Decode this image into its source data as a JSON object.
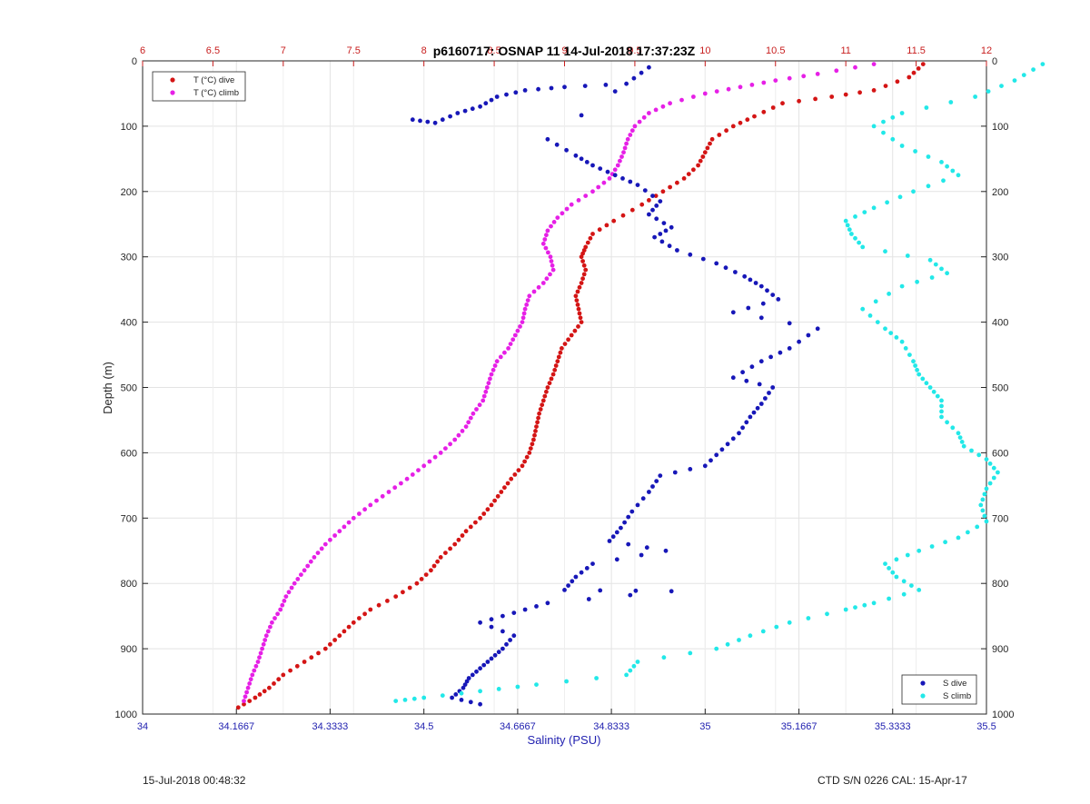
{
  "footer": {
    "left": "15-Jul-2018 00:48:32",
    "right": "CTD S/N 0226  CAL: 15-Apr-17"
  },
  "chart_data": {
    "type": "scatter",
    "title": "p6160717: OSNAP 11  14-Jul-2018 17:37:23Z",
    "ylabel": "Depth (m)",
    "xlabel": "Salinity (PSU)",
    "ylim": [
      0,
      1000
    ],
    "y_reversed": true,
    "y_ticks": [
      "0",
      "100",
      "200",
      "300",
      "400",
      "500",
      "600",
      "700",
      "800",
      "900",
      "1000"
    ],
    "salinity_axis": {
      "range": [
        34,
        35.5
      ],
      "ticks": [
        "34",
        "34.1667",
        "34.3333",
        "34.5",
        "34.6667",
        "34.8333",
        "35",
        "35.1667",
        "35.3333",
        "35.5"
      ],
      "color": "#2121b0"
    },
    "temperature_axis": {
      "range": [
        6,
        12
      ],
      "ticks": [
        "6",
        "6.5",
        "7",
        "7.5",
        "8",
        "8.5",
        "9",
        "9.5",
        "10",
        "10.5",
        "11",
        "11.5",
        "12"
      ],
      "color": "#c81e1e"
    },
    "grid": true,
    "legends": [
      {
        "position": "top-left",
        "entries": [
          "T (°C) dive",
          "T (°C) climb"
        ]
      },
      {
        "position": "bottom-right",
        "entries": [
          "S dive",
          "S climb"
        ]
      }
    ],
    "series": [
      {
        "name": "T (°C) dive",
        "axis": "temperature",
        "color": "#d41515",
        "points": [
          [
            11.55,
            5
          ],
          [
            11.45,
            25
          ],
          [
            11.2,
            45
          ],
          [
            10.9,
            55
          ],
          [
            10.55,
            65
          ],
          [
            10.35,
            85
          ],
          [
            10.2,
            100
          ],
          [
            10.05,
            120
          ],
          [
            10.0,
            140
          ],
          [
            9.95,
            160
          ],
          [
            9.85,
            180
          ],
          [
            9.7,
            200
          ],
          [
            9.55,
            220
          ],
          [
            9.35,
            245
          ],
          [
            9.2,
            265
          ],
          [
            9.15,
            285
          ],
          [
            9.12,
            300
          ],
          [
            9.15,
            320
          ],
          [
            9.12,
            340
          ],
          [
            9.08,
            360
          ],
          [
            9.1,
            380
          ],
          [
            9.12,
            400
          ],
          [
            9.05,
            420
          ],
          [
            8.98,
            440
          ],
          [
            8.95,
            460
          ],
          [
            8.92,
            480
          ],
          [
            8.88,
            500
          ],
          [
            8.85,
            520
          ],
          [
            8.82,
            540
          ],
          [
            8.8,
            560
          ],
          [
            8.78,
            580
          ],
          [
            8.75,
            600
          ],
          [
            8.7,
            620
          ],
          [
            8.62,
            640
          ],
          [
            8.55,
            660
          ],
          [
            8.48,
            680
          ],
          [
            8.4,
            700
          ],
          [
            8.3,
            720
          ],
          [
            8.22,
            740
          ],
          [
            8.12,
            760
          ],
          [
            8.05,
            780
          ],
          [
            7.95,
            800
          ],
          [
            7.8,
            820
          ],
          [
            7.62,
            840
          ],
          [
            7.5,
            860
          ],
          [
            7.4,
            880
          ],
          [
            7.3,
            900
          ],
          [
            7.15,
            920
          ],
          [
            7.0,
            940
          ],
          [
            6.9,
            960
          ],
          [
            6.8,
            975
          ],
          [
            6.68,
            990
          ]
        ]
      },
      {
        "name": "T (°C) climb",
        "axis": "temperature",
        "color": "#e620e6",
        "points": [
          [
            11.2,
            5
          ],
          [
            10.8,
            20
          ],
          [
            10.5,
            30
          ],
          [
            10.25,
            40
          ],
          [
            10.0,
            50
          ],
          [
            9.75,
            65
          ],
          [
            9.6,
            80
          ],
          [
            9.5,
            100
          ],
          [
            9.45,
            120
          ],
          [
            9.42,
            140
          ],
          [
            9.38,
            160
          ],
          [
            9.32,
            180
          ],
          [
            9.2,
            200
          ],
          [
            9.05,
            220
          ],
          [
            8.95,
            240
          ],
          [
            8.88,
            260
          ],
          [
            8.85,
            280
          ],
          [
            8.9,
            300
          ],
          [
            8.92,
            320
          ],
          [
            8.85,
            340
          ],
          [
            8.75,
            360
          ],
          [
            8.72,
            380
          ],
          [
            8.7,
            400
          ],
          [
            8.65,
            420
          ],
          [
            8.6,
            440
          ],
          [
            8.52,
            460
          ],
          [
            8.48,
            480
          ],
          [
            8.45,
            500
          ],
          [
            8.42,
            520
          ],
          [
            8.35,
            540
          ],
          [
            8.3,
            560
          ],
          [
            8.22,
            580
          ],
          [
            8.12,
            600
          ],
          [
            8.0,
            620
          ],
          [
            7.88,
            640
          ],
          [
            7.75,
            660
          ],
          [
            7.62,
            680
          ],
          [
            7.5,
            700
          ],
          [
            7.4,
            720
          ],
          [
            7.3,
            740
          ],
          [
            7.22,
            760
          ],
          [
            7.15,
            780
          ],
          [
            7.08,
            800
          ],
          [
            7.02,
            820
          ],
          [
            6.98,
            840
          ],
          [
            6.92,
            860
          ],
          [
            6.88,
            880
          ],
          [
            6.85,
            900
          ],
          [
            6.82,
            920
          ],
          [
            6.78,
            940
          ],
          [
            6.75,
            960
          ],
          [
            6.72,
            980
          ]
        ]
      },
      {
        "name": "S dive",
        "axis": "salinity",
        "color": "#1717b8",
        "points": [
          [
            34.48,
            90
          ],
          [
            34.52,
            95
          ],
          [
            34.56,
            80
          ],
          [
            34.6,
            70
          ],
          [
            34.63,
            55
          ],
          [
            34.68,
            45
          ],
          [
            34.75,
            40
          ],
          [
            34.86,
            35
          ],
          [
            34.9,
            10
          ],
          [
            34.72,
            120
          ],
          [
            34.77,
            145
          ],
          [
            34.8,
            160
          ],
          [
            34.84,
            175
          ],
          [
            34.88,
            190
          ],
          [
            34.92,
            215
          ],
          [
            34.9,
            235
          ],
          [
            34.94,
            255
          ],
          [
            34.91,
            270
          ],
          [
            34.95,
            290
          ],
          [
            35.02,
            310
          ],
          [
            35.07,
            330
          ],
          [
            35.1,
            345
          ],
          [
            35.13,
            365
          ],
          [
            35.05,
            385
          ],
          [
            35.2,
            410
          ],
          [
            35.15,
            440
          ],
          [
            35.1,
            460
          ],
          [
            35.05,
            485
          ],
          [
            35.12,
            500
          ],
          [
            35.1,
            525
          ],
          [
            35.08,
            545
          ],
          [
            35.06,
            570
          ],
          [
            35.03,
            595
          ],
          [
            35.0,
            620
          ],
          [
            34.92,
            635
          ],
          [
            34.9,
            660
          ],
          [
            34.87,
            690
          ],
          [
            34.85,
            715
          ],
          [
            34.83,
            735
          ],
          [
            34.93,
            750
          ],
          [
            34.8,
            770
          ],
          [
            34.77,
            790
          ],
          [
            34.75,
            810
          ],
          [
            34.94,
            812
          ],
          [
            34.72,
            830
          ],
          [
            34.66,
            845
          ],
          [
            34.6,
            860
          ],
          [
            34.66,
            880
          ],
          [
            34.64,
            900
          ],
          [
            34.62,
            915
          ],
          [
            34.6,
            930
          ],
          [
            34.58,
            945
          ],
          [
            34.57,
            960
          ],
          [
            34.55,
            975
          ],
          [
            34.6,
            985
          ]
        ]
      },
      {
        "name": "S climb",
        "axis": "salinity",
        "color": "#22e8e8",
        "points": [
          [
            35.6,
            5
          ],
          [
            35.55,
            30
          ],
          [
            35.48,
            55
          ],
          [
            35.35,
            80
          ],
          [
            35.3,
            100
          ],
          [
            35.35,
            130
          ],
          [
            35.42,
            155
          ],
          [
            35.45,
            175
          ],
          [
            35.37,
            200
          ],
          [
            35.3,
            225
          ],
          [
            35.25,
            245
          ],
          [
            35.26,
            265
          ],
          [
            35.28,
            285
          ],
          [
            35.4,
            305
          ],
          [
            35.43,
            325
          ],
          [
            35.35,
            345
          ],
          [
            35.28,
            380
          ],
          [
            35.32,
            410
          ],
          [
            35.35,
            430
          ],
          [
            35.37,
            460
          ],
          [
            35.38,
            480
          ],
          [
            35.4,
            500
          ],
          [
            35.42,
            520
          ],
          [
            35.42,
            545
          ],
          [
            35.45,
            570
          ],
          [
            35.46,
            590
          ],
          [
            35.5,
            610
          ],
          [
            35.52,
            630
          ],
          [
            35.5,
            655
          ],
          [
            35.49,
            680
          ],
          [
            35.5,
            705
          ],
          [
            35.45,
            730
          ],
          [
            35.38,
            750
          ],
          [
            35.32,
            770
          ],
          [
            35.34,
            790
          ],
          [
            35.38,
            810
          ],
          [
            35.3,
            830
          ],
          [
            35.25,
            840
          ],
          [
            35.15,
            860
          ],
          [
            35.08,
            880
          ],
          [
            35.02,
            900
          ],
          [
            34.88,
            920
          ],
          [
            34.86,
            940
          ],
          [
            34.7,
            955
          ],
          [
            34.6,
            965
          ],
          [
            34.5,
            975
          ],
          [
            34.45,
            980
          ]
        ]
      }
    ]
  }
}
